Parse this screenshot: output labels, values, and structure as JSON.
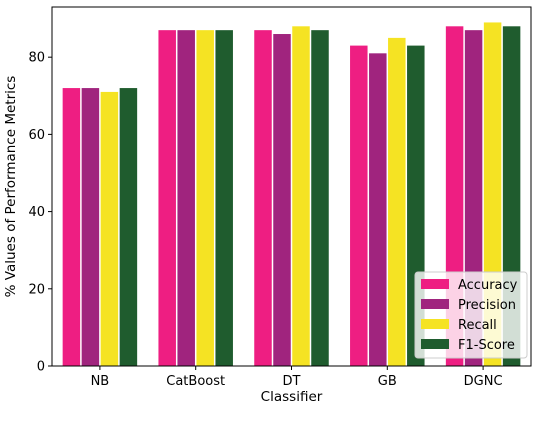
{
  "chart_data": {
    "type": "bar",
    "xlabel": "Classifier",
    "ylabel": "% Values of Performance Metrics",
    "categories": [
      "NB",
      "CatBoost",
      "DT",
      "GB",
      "DGNC"
    ],
    "ylim": [
      0,
      93
    ],
    "yticks": [
      0,
      20,
      40,
      60,
      80
    ],
    "grid": false,
    "legend_position": "lower-right",
    "series": [
      {
        "name": "Accuracy",
        "color": "#ee1e82",
        "values": [
          72,
          87,
          87,
          83,
          88
        ]
      },
      {
        "name": "Precision",
        "color": "#a0247e",
        "values": [
          72,
          87,
          86,
          81,
          87
        ]
      },
      {
        "name": "Recall",
        "color": "#f5e323",
        "values": [
          71,
          87,
          88,
          85,
          89
        ]
      },
      {
        "name": "F1-Score",
        "color": "#1f5c2e",
        "values": [
          72,
          87,
          87,
          83,
          88
        ]
      }
    ]
  }
}
